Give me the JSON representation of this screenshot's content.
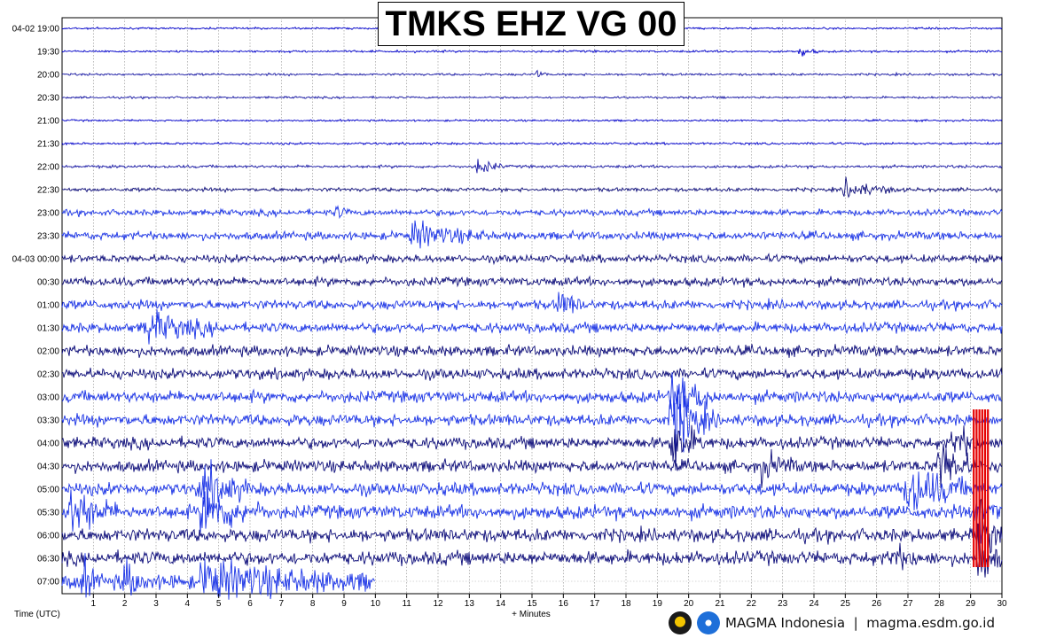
{
  "header": {
    "title": "TMKS EHZ VG 00"
  },
  "footer": {
    "brand": "MAGMA Indonesia",
    "separator": "|",
    "site": "magma.esdm.go.id",
    "logos": [
      "esdm-logo-icon",
      "magma-logo-icon"
    ]
  },
  "chart_data": {
    "type": "line",
    "chart_kind": "helicorder",
    "title": "TMKS EHZ VG 00",
    "xlabel": "+ Minutes",
    "ylabel": "Time (UTC)",
    "xlim": [
      0,
      30
    ],
    "x_ticks": [
      "1",
      "2",
      "3",
      "4",
      "5",
      "6",
      "7",
      "8",
      "9",
      "10",
      "11",
      "12",
      "13",
      "14",
      "15",
      "16",
      "17",
      "18",
      "19",
      "20",
      "21",
      "22",
      "23",
      "24",
      "25",
      "26",
      "27",
      "28",
      "29",
      "30"
    ],
    "grid": true,
    "row_labels": [
      "04-02 19:00",
      "19:30",
      "20:00",
      "20:30",
      "21:00",
      "21:30",
      "22:00",
      "22:30",
      "23:00",
      "23:30",
      "04-03 00:00",
      "00:30",
      "01:00",
      "01:30",
      "02:00",
      "02:30",
      "03:00",
      "03:30",
      "04:00",
      "04:30",
      "05:00",
      "05:30",
      "06:00",
      "06:30",
      "07:00"
    ],
    "colors": [
      "#0000cc",
      "#1a1aa6",
      "#0d0d7a",
      "#1a33e6",
      "#e60000"
    ],
    "trace_color_sequence": [
      0,
      0,
      1,
      1,
      0,
      0,
      1,
      2,
      3,
      3,
      2,
      2,
      3,
      3,
      2,
      2,
      3,
      3,
      2,
      2,
      3,
      3,
      2,
      2,
      3
    ],
    "noise_amplitude": [
      1.0,
      1.1,
      1.2,
      1.1,
      1.0,
      1.2,
      1.5,
      2.0,
      3.2,
      4.2,
      4.0,
      4.5,
      4.8,
      5.2,
      5.5,
      5.5,
      6.0,
      6.0,
      6.0,
      6.2,
      6.5,
      7.0,
      6.8,
      7.0,
      8.0
    ],
    "end_minute_last_row": 10.0,
    "events": [
      {
        "row": 1,
        "minute": 23.6,
        "amp": 5,
        "dur": 0.6
      },
      {
        "row": 2,
        "minute": 15.2,
        "amp": 5,
        "dur": 0.3
      },
      {
        "row": 6,
        "minute": 13.3,
        "amp": 10,
        "dur": 0.8
      },
      {
        "row": 7,
        "minute": 25.0,
        "amp": 10,
        "dur": 1.8
      },
      {
        "row": 8,
        "minute": 8.8,
        "amp": 6,
        "dur": 0.4
      },
      {
        "row": 9,
        "minute": 11.2,
        "amp": 14,
        "dur": 2.5
      },
      {
        "row": 12,
        "minute": 15.9,
        "amp": 16,
        "dur": 0.8
      },
      {
        "row": 13,
        "minute": 2.7,
        "amp": 16,
        "dur": 2.5
      },
      {
        "row": 16,
        "minute": 19.5,
        "amp": 34,
        "dur": 1.4
      },
      {
        "row": 17,
        "minute": 19.5,
        "amp": 38,
        "dur": 1.4
      },
      {
        "row": 18,
        "minute": 19.5,
        "amp": 30,
        "dur": 1.0
      },
      {
        "row": 18,
        "minute": 28.5,
        "amp": 22,
        "dur": 0.8
      },
      {
        "row": 19,
        "minute": 22.3,
        "amp": 14,
        "dur": 1.2
      },
      {
        "row": 19,
        "minute": 28.0,
        "amp": 30,
        "dur": 1.2
      },
      {
        "row": 20,
        "minute": 4.5,
        "amp": 26,
        "dur": 1.6
      },
      {
        "row": 20,
        "minute": 27.0,
        "amp": 28,
        "dur": 2.2
      },
      {
        "row": 21,
        "minute": 0.3,
        "amp": 26,
        "dur": 1.5
      },
      {
        "row": 21,
        "minute": 4.5,
        "amp": 26,
        "dur": 2.0
      },
      {
        "row": 21,
        "minute": 29.3,
        "amp": 40,
        "dur": 0.7
      },
      {
        "row": 22,
        "minute": 29.3,
        "amp": 40,
        "dur": 0.7
      },
      {
        "row": 23,
        "minute": 26.5,
        "amp": 14,
        "dur": 0.8
      },
      {
        "row": 23,
        "minute": 29.3,
        "amp": 30,
        "dur": 0.7
      },
      {
        "row": 24,
        "minute": 0.7,
        "amp": 18,
        "dur": 0.5
      },
      {
        "row": 24,
        "minute": 2.0,
        "amp": 18,
        "dur": 0.8
      },
      {
        "row": 24,
        "minute": 4.5,
        "amp": 20,
        "dur": 5.5
      }
    ],
    "clipped_segments": [
      {
        "rows": [
          17,
          23
        ],
        "minute_start": 29.1,
        "minute_end": 29.6,
        "color": "#e60000"
      }
    ]
  }
}
